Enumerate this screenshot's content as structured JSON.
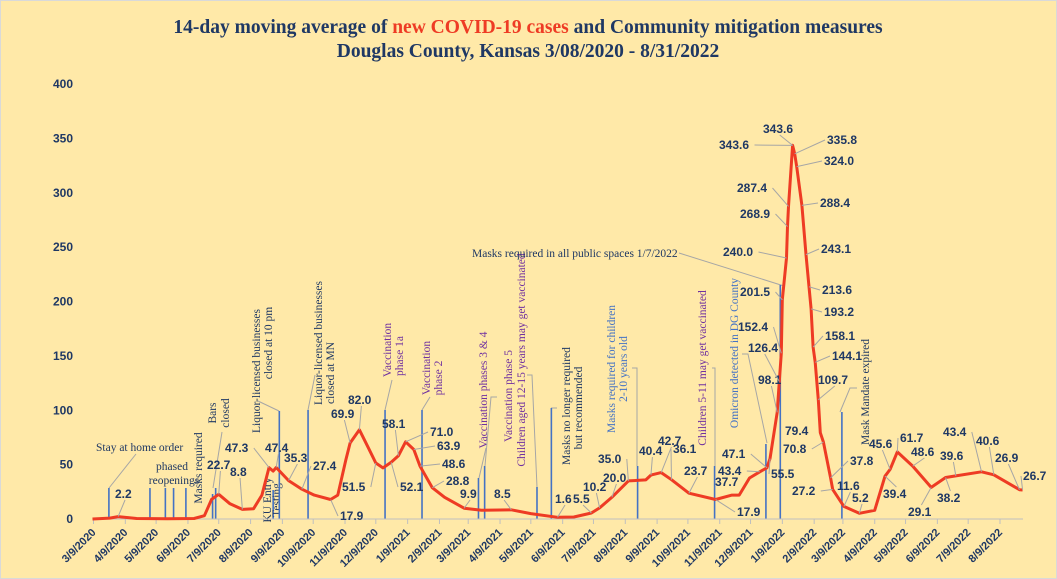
{
  "title": {
    "line1_part1": "14-day moving average of ",
    "line1_highlight": "new COVID-19 cases",
    "line1_part2": " and Community mitigation measures",
    "line2": "Douglas County, Kansas 3/08/2020 - 8/31/2022"
  },
  "chart_data": {
    "type": "line",
    "title": "14-day moving average of new COVID-19 cases and Community mitigation measures Douglas County, Kansas 3/08/2020 - 8/31/2022",
    "xlabel": "",
    "ylabel": "",
    "ylim": [
      0,
      400
    ],
    "y_ticks": [
      0,
      50,
      100,
      150,
      200,
      250,
      300,
      350,
      400
    ],
    "x_tick_labels": [
      "3/9/2020",
      "4/9/2020",
      "5/9/2020",
      "6/9/2020",
      "7/9/2020",
      "8/9/2020",
      "9/9/2020",
      "10/9/2020",
      "11/9/2020",
      "12/9/2020",
      "1/9/2021",
      "2/9/2021",
      "3/9/2021",
      "4/9/2021",
      "5/9/2021",
      "6/9/2021",
      "7/9/2021",
      "8/9/2021",
      "9/9/2021",
      "10/9/2021",
      "11/9/2021",
      "12/9/2021",
      "1/9/2022",
      "2/9/2022",
      "3/9/2022",
      "4/9/2022",
      "5/9/2022",
      "6/9/2022",
      "7/9/2022",
      "8/9/2022"
    ],
    "xlim": [
      "2020-03-08",
      "2022-08-31"
    ],
    "grid": false,
    "legend": "none",
    "colors": {
      "series": "#EE3B24",
      "event_line": "#4472C4",
      "leader": "#A6A6A6",
      "text": "#1F3864",
      "vaccination": "#7030A0",
      "masks_blue": "#4472C4",
      "background": "#FFE9A8"
    },
    "series": [
      {
        "points": [
          [
            "2020-03-08",
            0
          ],
          [
            "2020-03-25",
            0.8
          ],
          [
            "2020-04-02",
            2.2
          ],
          [
            "2020-04-20",
            0.5
          ],
          [
            "2020-05-20",
            0.3
          ],
          [
            "2020-06-15",
            0.5
          ],
          [
            "2020-06-25",
            3
          ],
          [
            "2020-07-02",
            18
          ],
          [
            "2020-07-09",
            22.7
          ],
          [
            "2020-07-20",
            14
          ],
          [
            "2020-08-01",
            8.8
          ],
          [
            "2020-08-12",
            9.5
          ],
          [
            "2020-08-20",
            22
          ],
          [
            "2020-08-27",
            47.3
          ],
          [
            "2020-08-31",
            44
          ],
          [
            "2020-09-03",
            47.4
          ],
          [
            "2020-09-15",
            35.3
          ],
          [
            "2020-09-28",
            27.4
          ],
          [
            "2020-10-10",
            22
          ],
          [
            "2020-10-26",
            17.9
          ],
          [
            "2020-11-02",
            22
          ],
          [
            "2020-11-10",
            55
          ],
          [
            "2020-11-14",
            69.9
          ],
          [
            "2020-11-23",
            82.0
          ],
          [
            "2020-12-02",
            65
          ],
          [
            "2020-12-09",
            51.5
          ],
          [
            "2020-12-16",
            47
          ],
          [
            "2020-12-24",
            52.1
          ],
          [
            "2020-12-31",
            58.1
          ],
          [
            "2021-01-07",
            71.0
          ],
          [
            "2021-01-15",
            63.9
          ],
          [
            "2021-01-21",
            48.6
          ],
          [
            "2021-02-02",
            28.8
          ],
          [
            "2021-02-14",
            20
          ],
          [
            "2021-03-05",
            9.9
          ],
          [
            "2021-03-22",
            8
          ],
          [
            "2021-04-20",
            8.5
          ],
          [
            "2021-05-09",
            5
          ],
          [
            "2021-06-04",
            1.6
          ],
          [
            "2021-06-20",
            1.8
          ],
          [
            "2021-07-07",
            5.5
          ],
          [
            "2021-07-15",
            10.2
          ],
          [
            "2021-07-27",
            20.0
          ],
          [
            "2021-08-12",
            35.0
          ],
          [
            "2021-08-29",
            36
          ],
          [
            "2021-09-03",
            40.4
          ],
          [
            "2021-09-13",
            42.7
          ],
          [
            "2021-09-23",
            36.1
          ],
          [
            "2021-10-10",
            23.7
          ],
          [
            "2021-11-05",
            17.9
          ],
          [
            "2021-11-21",
            22
          ],
          [
            "2021-11-28",
            22
          ],
          [
            "2021-12-08",
            37.7
          ],
          [
            "2021-12-18",
            43.4
          ],
          [
            "2021-12-25",
            47.1
          ],
          [
            "2021-12-28",
            55.5
          ],
          [
            "2022-01-04",
            98.1
          ],
          [
            "2022-01-06",
            126.4
          ],
          [
            "2022-01-08",
            152.4
          ],
          [
            "2022-01-09",
            201.5
          ],
          [
            "2022-01-13",
            240.0
          ],
          [
            "2022-01-14",
            268.9
          ],
          [
            "2022-01-15",
            287.4
          ],
          [
            "2022-01-19",
            343.6
          ],
          [
            "2022-01-21",
            335.8
          ],
          [
            "2022-01-23",
            324.0
          ],
          [
            "2022-01-28",
            288.4
          ],
          [
            "2022-02-01",
            243.1
          ],
          [
            "2022-02-04",
            213.6
          ],
          [
            "2022-02-06",
            193.2
          ],
          [
            "2022-02-08",
            158.1
          ],
          [
            "2022-02-10",
            144.1
          ],
          [
            "2022-02-13",
            109.7
          ],
          [
            "2022-02-15",
            79.4
          ],
          [
            "2022-02-18",
            70.8
          ],
          [
            "2022-02-25",
            37.8
          ],
          [
            "2022-02-27",
            27.2
          ],
          [
            "2022-03-10",
            11.6
          ],
          [
            "2022-03-25",
            5.2
          ],
          [
            "2022-04-09",
            8
          ],
          [
            "2022-04-19",
            39.4
          ],
          [
            "2022-04-24",
            45.6
          ],
          [
            "2022-05-01",
            61.7
          ],
          [
            "2022-05-16",
            48.6
          ],
          [
            "2022-06-03",
            29.1
          ],
          [
            "2022-06-17",
            38.2
          ],
          [
            "2022-06-27",
            39.6
          ],
          [
            "2022-07-22",
            43.4
          ],
          [
            "2022-08-03",
            40.6
          ],
          [
            "2022-08-28",
            26.9
          ],
          [
            "2022-08-31",
            26.7
          ]
        ]
      }
    ],
    "data_labels": [
      {
        "text": "2.2",
        "date": "2020-04-02"
      },
      {
        "text": "22.7",
        "date": "2020-07-09"
      },
      {
        "text": "8.8",
        "date": "2020-08-01"
      },
      {
        "text": "47.3",
        "date": "2020-08-27"
      },
      {
        "text": "47.4",
        "date": "2020-09-03"
      },
      {
        "text": "35.3",
        "date": "2020-09-15"
      },
      {
        "text": "27.4",
        "date": "2020-09-28"
      },
      {
        "text": "17.9",
        "date": "2020-10-26"
      },
      {
        "text": "69.9",
        "date": "2020-11-14"
      },
      {
        "text": "82.0",
        "date": "2020-11-23"
      },
      {
        "text": "51.5",
        "date": "2020-12-09"
      },
      {
        "text": "52.1",
        "date": "2020-12-24"
      },
      {
        "text": "58.1",
        "date": "2020-12-31"
      },
      {
        "text": "71.0",
        "date": "2021-01-07"
      },
      {
        "text": "63.9",
        "date": "2021-01-15"
      },
      {
        "text": "48.6",
        "date": "2021-01-21"
      },
      {
        "text": "28.8",
        "date": "2021-02-02"
      },
      {
        "text": "9.9",
        "date": "2021-03-05"
      },
      {
        "text": "8.5",
        "date": "2021-04-20"
      },
      {
        "text": "1.6",
        "date": "2021-06-04"
      },
      {
        "text": "5.5",
        "date": "2021-07-07"
      },
      {
        "text": "10.2",
        "date": "2021-07-15"
      },
      {
        "text": "20.0",
        "date": "2021-07-27"
      },
      {
        "text": "35.0",
        "date": "2021-08-12"
      },
      {
        "text": "40.4",
        "date": "2021-09-03"
      },
      {
        "text": "42.7",
        "date": "2021-09-13"
      },
      {
        "text": "36.1",
        "date": "2021-09-23"
      },
      {
        "text": "23.7",
        "date": "2021-10-10"
      },
      {
        "text": "17.9",
        "date": "2021-11-05"
      },
      {
        "text": "37.7",
        "date": "2021-12-08"
      },
      {
        "text": "43.4",
        "date": "2021-12-18"
      },
      {
        "text": "47.1",
        "date": "2021-12-25"
      },
      {
        "text": "55.5",
        "date": "2021-12-28"
      },
      {
        "text": "98.1",
        "date": "2022-01-04"
      },
      {
        "text": "126.4",
        "date": "2022-01-06"
      },
      {
        "text": "152.4",
        "date": "2022-01-08"
      },
      {
        "text": "201.5",
        "date": "2022-01-09"
      },
      {
        "text": "240.0",
        "date": "2022-01-13"
      },
      {
        "text": "268.9",
        "date": "2022-01-14"
      },
      {
        "text": "287.4",
        "date": "2022-01-15"
      },
      {
        "text": "343.6",
        "date": "2022-01-19"
      },
      {
        "text": "343.6",
        "date": "2022-01-19"
      },
      {
        "text": "335.8",
        "date": "2022-01-21"
      },
      {
        "text": "324.0",
        "date": "2022-01-23"
      },
      {
        "text": "288.4",
        "date": "2022-01-28"
      },
      {
        "text": "243.1",
        "date": "2022-02-01"
      },
      {
        "text": "213.6",
        "date": "2022-02-04"
      },
      {
        "text": "193.2",
        "date": "2022-02-06"
      },
      {
        "text": "158.1",
        "date": "2022-02-08"
      },
      {
        "text": "144.1",
        "date": "2022-02-10"
      },
      {
        "text": "109.7",
        "date": "2022-02-13"
      },
      {
        "text": "79.4",
        "date": "2022-02-15"
      },
      {
        "text": "70.8",
        "date": "2022-02-18"
      },
      {
        "text": "37.8",
        "date": "2022-02-25"
      },
      {
        "text": "27.2",
        "date": "2022-02-27"
      },
      {
        "text": "11.6",
        "date": "2022-03-10"
      },
      {
        "text": "5.2",
        "date": "2022-03-25"
      },
      {
        "text": "39.4",
        "date": "2022-04-19"
      },
      {
        "text": "45.6",
        "date": "2022-04-24"
      },
      {
        "text": "61.7",
        "date": "2022-05-01"
      },
      {
        "text": "48.6",
        "date": "2022-05-16"
      },
      {
        "text": "29.1",
        "date": "2022-06-03"
      },
      {
        "text": "38.2",
        "date": "2022-06-17"
      },
      {
        "text": "39.6",
        "date": "2022-06-27"
      },
      {
        "text": "43.4",
        "date": "2022-07-22"
      },
      {
        "text": "40.6",
        "date": "2022-08-03"
      },
      {
        "text": "26.9",
        "date": "2022-08-28"
      },
      {
        "text": "26.7",
        "date": "2022-08-31"
      }
    ],
    "events": [
      {
        "lines": [
          "Stay at home order"
        ],
        "dates": [
          "2020-03-24"
        ],
        "color": "#1F3864"
      },
      {
        "lines": [
          "phased",
          "reopenings"
        ],
        "dates": [
          "2020-05-03",
          "2020-05-18",
          "2020-05-26",
          "2020-06-07"
        ],
        "color": "#1F3864"
      },
      {
        "lines": [
          "Masks required"
        ],
        "dates": [
          "2020-07-03"
        ],
        "color": "#1F3864"
      },
      {
        "lines": [
          "Bars",
          "closed"
        ],
        "dates": [
          "2020-07-06"
        ],
        "color": "#1F3864"
      },
      {
        "lines": [
          "KU Entry",
          "Testing"
        ],
        "dates": [
          "2020-08-31"
        ],
        "color": "#1F3864"
      },
      {
        "lines": [
          "Liquor-licensed businesses",
          "closed at 10 pm"
        ],
        "dates": [
          "2020-09-06"
        ],
        "color": "#1F3864"
      },
      {
        "lines": [
          "Liquor-licensed businesses",
          "closed at MN"
        ],
        "dates": [
          "2020-10-04"
        ],
        "color": "#1F3864"
      },
      {
        "lines": [
          "Vaccination",
          "phase 1a"
        ],
        "dates": [
          "2020-12-18"
        ],
        "color": "#7030A0"
      },
      {
        "lines": [
          "Vaccination",
          "phase 2"
        ],
        "dates": [
          "2021-01-23"
        ],
        "color": "#7030A0"
      },
      {
        "lines": [
          "Vaccination phases 3 & 4"
        ],
        "dates": [
          "2021-03-19"
        ],
        "color": "#7030A0"
      },
      {
        "lines": [
          "Vaccination phase 5",
          "Children aged 12-15 years may get vaccinated"
        ],
        "dates": [
          "2021-03-25",
          "2021-05-15"
        ],
        "color": "#7030A0"
      },
      {
        "lines": [
          "Masks no longer required",
          "but recommended"
        ],
        "dates": [
          "2021-05-29"
        ],
        "color": "#1F3864"
      },
      {
        "lines": [
          "Masks required for children",
          "2-10 years old"
        ],
        "dates": [
          "2021-08-21"
        ],
        "color": "#4472C4"
      },
      {
        "lines": [
          "Children 5-11 may get vaccinated"
        ],
        "dates": [
          "2021-11-04"
        ],
        "color": "#7030A0"
      },
      {
        "lines": [
          "Omicron detected in DG  County"
        ],
        "dates": [
          "2021-12-24"
        ],
        "color": "#4472C4"
      },
      {
        "lines": [
          "Masks required in all public spaces 1/7/2022"
        ],
        "dates": [
          "2022-01-07"
        ],
        "color": "#1F3864"
      },
      {
        "lines": [
          "Mask Mandate expired"
        ],
        "dates": [
          "2022-03-08"
        ],
        "color": "#1F3864"
      }
    ]
  }
}
